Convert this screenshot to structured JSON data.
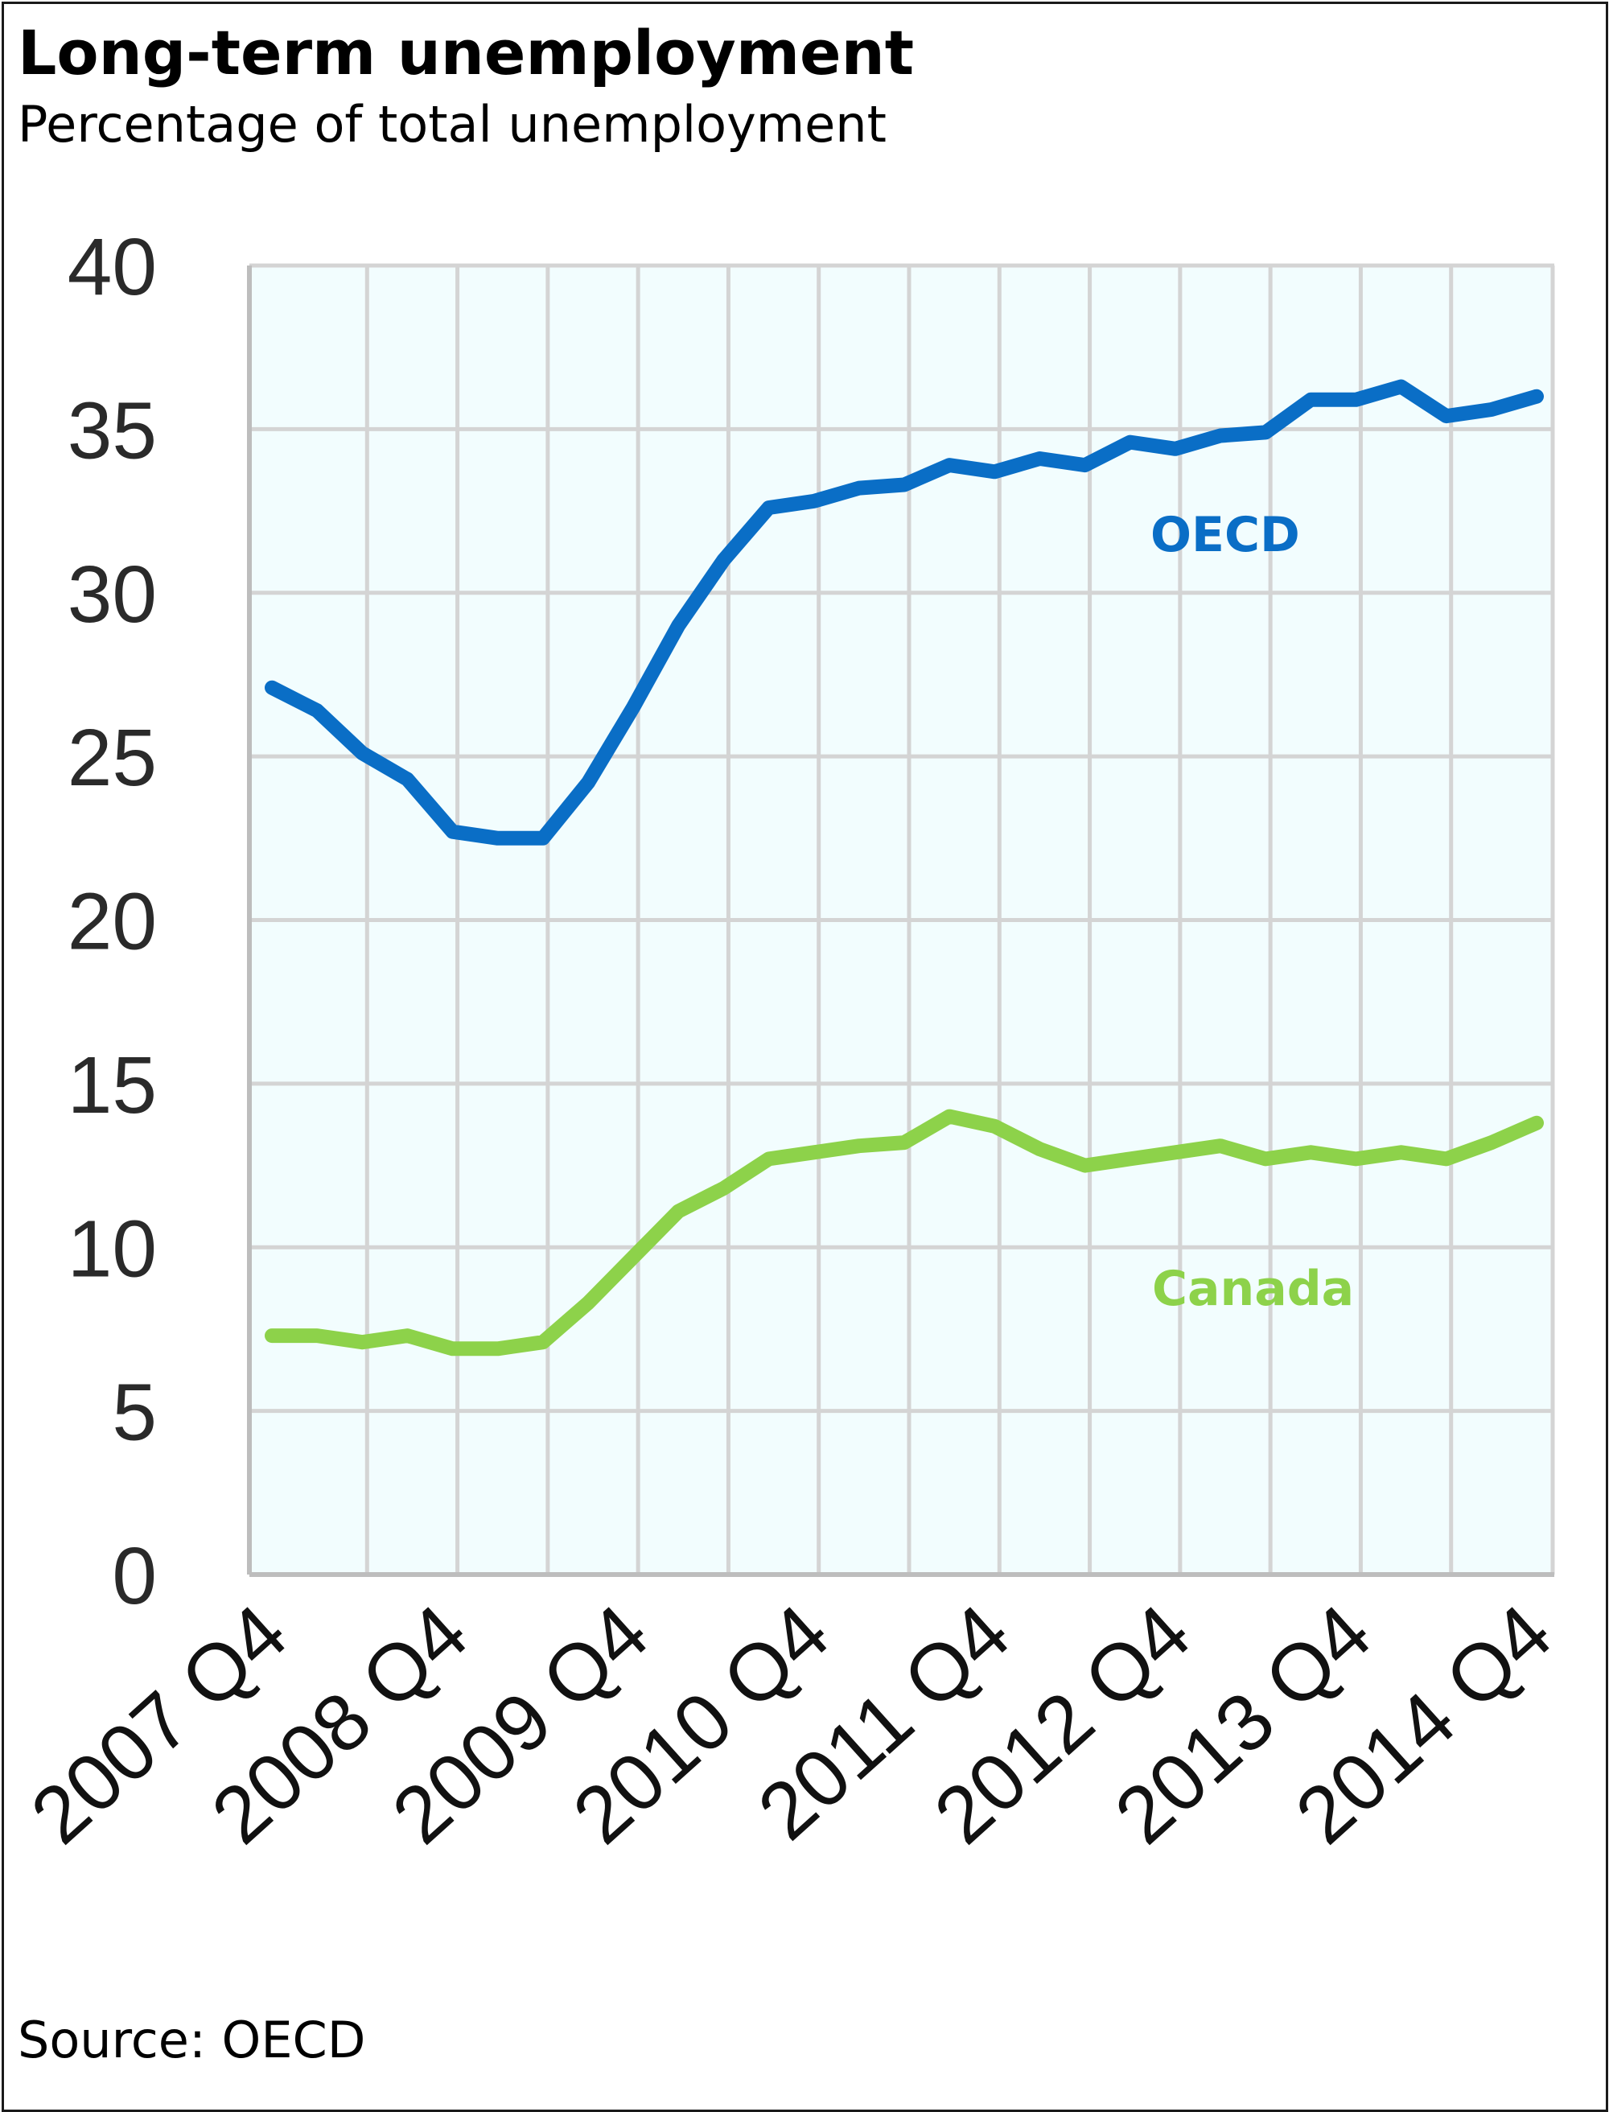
{
  "title": "Long-term unemployment",
  "subtitle": "Percentage of total unemployment",
  "source": "Source: OECD",
  "colors": {
    "oecd": "#0a6ec6",
    "canada": "#8dd24a",
    "plot_bg": "#f2fdfe",
    "grid": "#d4d4d4"
  },
  "chart_data": {
    "type": "line",
    "title": "Long-term unemployment",
    "subtitle": "Percentage of total unemployment",
    "xlabel": "",
    "ylabel": "",
    "ylim": [
      0,
      40
    ],
    "yticks": [
      "0",
      "5",
      "10",
      "15",
      "20",
      "25",
      "30",
      "35",
      "40"
    ],
    "x_tick_labels": [
      "2007 Q4",
      "2008 Q4",
      "2009 Q4",
      "2010 Q4",
      "2011 Q4",
      "2012 Q4",
      "2013 Q4",
      "2014 Q4"
    ],
    "x_quarters": [
      "2007 Q4",
      "2008 Q1",
      "2008 Q2",
      "2008 Q3",
      "2008 Q4",
      "2009 Q1",
      "2009 Q2",
      "2009 Q3",
      "2009 Q4",
      "2010 Q1",
      "2010 Q2",
      "2010 Q3",
      "2010 Q4",
      "2011 Q1",
      "2011 Q2",
      "2011 Q3",
      "2011 Q4",
      "2012 Q1",
      "2012 Q2",
      "2012 Q3",
      "2012 Q4",
      "2013 Q1",
      "2013 Q2",
      "2013 Q3",
      "2013 Q4",
      "2014 Q1",
      "2014 Q2",
      "2014 Q3",
      "2014 Q4"
    ],
    "grid": true,
    "series": [
      {
        "name": "OECD",
        "label": "OECD",
        "values": [
          27.1,
          26.4,
          25.1,
          24.3,
          22.7,
          22.5,
          22.5,
          24.2,
          26.5,
          29.0,
          31.0,
          32.6,
          32.8,
          33.2,
          33.3,
          33.9,
          33.7,
          34.1,
          33.9,
          34.6,
          34.4,
          34.8,
          34.9,
          35.9,
          35.9,
          36.3,
          35.4,
          35.6,
          36.0
        ]
      },
      {
        "name": "Canada",
        "label": "Canada",
        "values": [
          7.3,
          7.3,
          7.1,
          7.3,
          6.9,
          6.9,
          7.1,
          8.3,
          9.7,
          11.1,
          11.8,
          12.7,
          12.9,
          13.1,
          13.2,
          14.0,
          13.7,
          13.0,
          12.5,
          12.7,
          12.9,
          13.1,
          12.7,
          12.9,
          12.7,
          12.9,
          12.7,
          13.2,
          13.8
        ]
      }
    ]
  }
}
